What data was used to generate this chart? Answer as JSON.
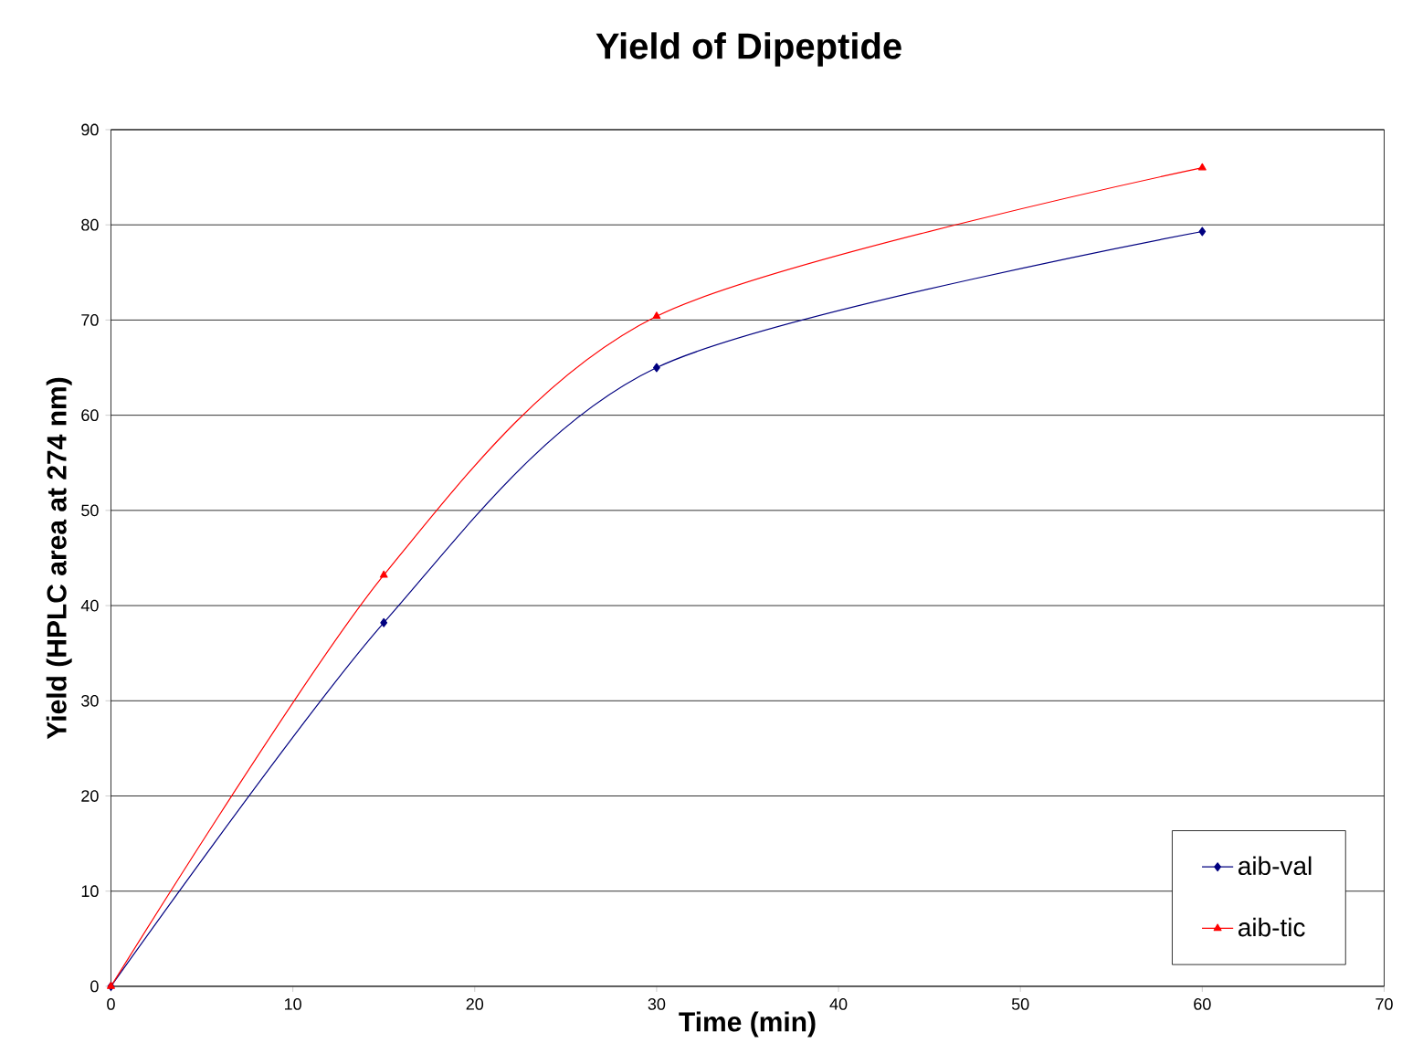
{
  "chart_data": {
    "type": "line",
    "title": "Yield of Dipeptide",
    "xlabel": "Time (min)",
    "ylabel": "Yield (HPLC area at 274 nm)",
    "x": [
      0,
      15,
      30,
      60
    ],
    "series": [
      {
        "name": "aib-val",
        "color": "#000080",
        "marker": "diamond",
        "values": [
          0,
          38.2,
          65,
          79.3
        ]
      },
      {
        "name": "aib-tic",
        "color": "#ff0000",
        "marker": "triangle",
        "values": [
          0,
          43.2,
          70.4,
          86
        ]
      }
    ],
    "xlim": [
      0,
      70
    ],
    "xticks": [
      0,
      10,
      20,
      30,
      40,
      50,
      60,
      70
    ],
    "ylim": [
      0,
      90
    ],
    "yticks": [
      0,
      10,
      20,
      30,
      40,
      50,
      60,
      70,
      80,
      90
    ],
    "grid": "y",
    "legend": "bottom right",
    "line_style": "solid"
  }
}
